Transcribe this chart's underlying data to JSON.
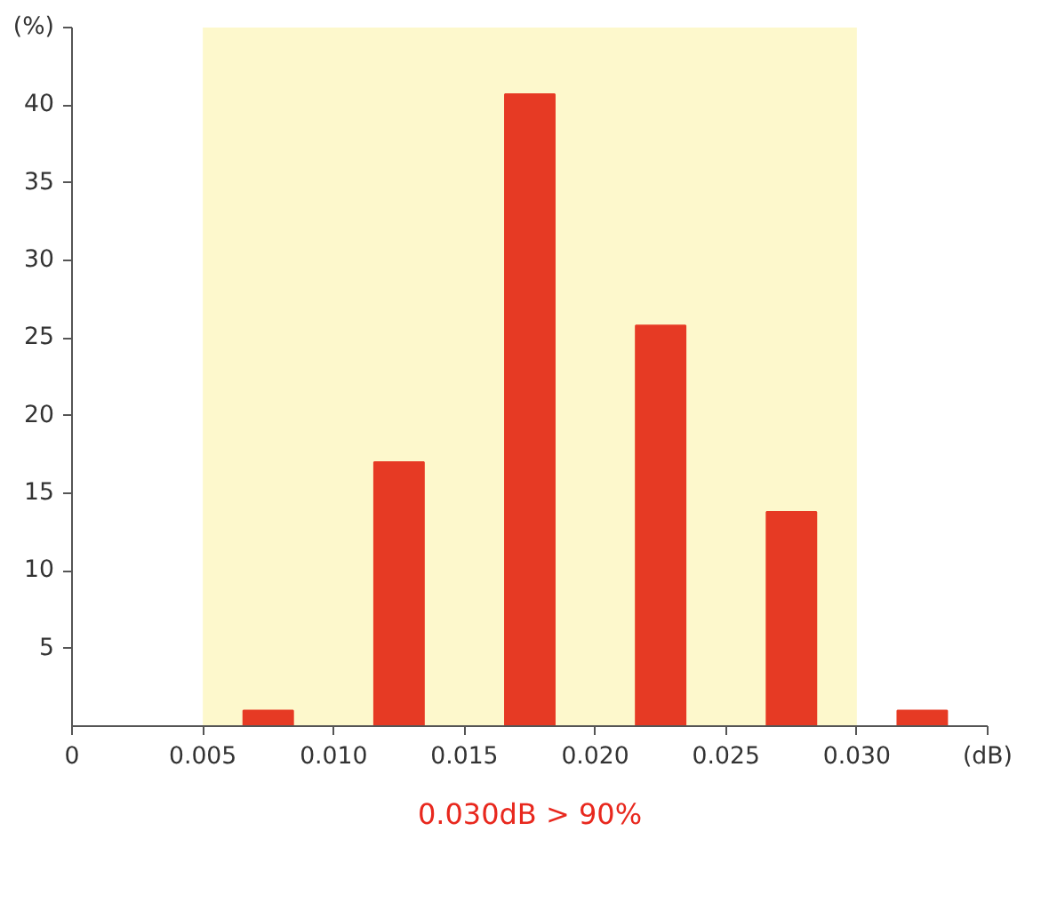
{
  "chart_data": {
    "type": "bar",
    "x": [
      0.0075,
      0.0125,
      0.0175,
      0.0225,
      0.0275,
      0.0325
    ],
    "values": [
      1,
      17,
      40.7,
      25.8,
      13.8,
      1
    ],
    "color": "#e63a24",
    "xlabel": "(dB)",
    "ylabel": "(%)",
    "xlim": [
      0,
      0.035
    ],
    "ylim": [
      0,
      45
    ],
    "xticks": [
      0,
      {
        "value": 0.005,
        "label": "0.005"
      },
      {
        "value": 0.01,
        "label": "0.010"
      },
      {
        "value": 0.015,
        "label": "0.015"
      },
      {
        "value": 0.02,
        "label": "0.020"
      },
      {
        "value": 0.025,
        "label": "0.025"
      },
      {
        "value": 0.03,
        "label": "0.030"
      },
      {
        "value": 0.035,
        "label": null
      }
    ],
    "yticks": [
      5,
      10,
      15,
      20,
      25,
      30,
      35,
      40,
      {
        "value": 45,
        "label": null
      }
    ],
    "bands": [
      {
        "axis": "x",
        "from": 0.005,
        "to": 0.03,
        "color": "#fdf8cc"
      }
    ],
    "annotations": [
      "0.030dB > 90%"
    ],
    "grid": false
  }
}
